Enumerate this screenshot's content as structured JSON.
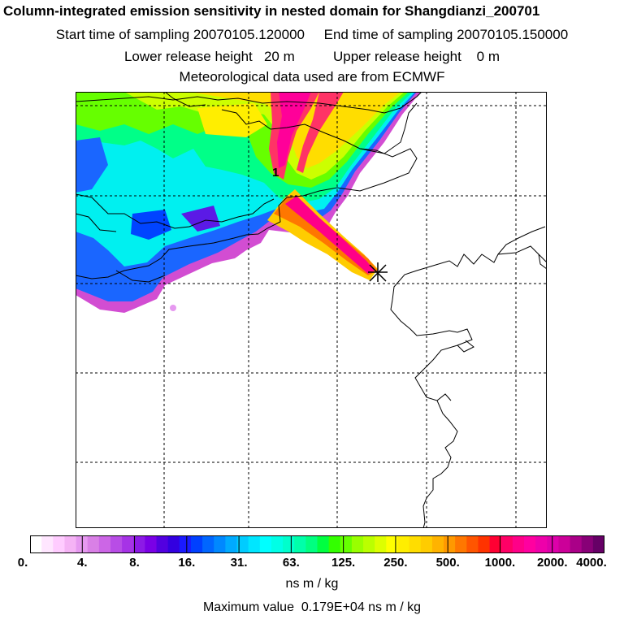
{
  "header": {
    "title": "Column-integrated emission sensitivity in nested domain for Shangdianzi_200701",
    "sampling_line": "Start time of sampling 20070105.120000     End time of sampling 20070105.150000",
    "release_line": "Lower release height   20 m          Upper release height    0 m",
    "met_line": "Meteorological data used are from ECMWF"
  },
  "map": {
    "label_1": "1",
    "receptor_marker": "star-cross-marker"
  },
  "colorbar": {
    "tick_labels": [
      "0.",
      "4.",
      "8.",
      "16.",
      "31.",
      "63.",
      "125.",
      "250.",
      "500.",
      "1000.",
      "2000.",
      "4000."
    ],
    "colors": [
      "#ffffff",
      "#ffe6ff",
      "#ffccff",
      "#f5b3f5",
      "#e699f0",
      "#d980e6",
      "#cc66e6",
      "#b84de6",
      "#a633e6",
      "#8c1ae6",
      "#7a00e6",
      "#5200e0",
      "#3300e0",
      "#1a1aff",
      "#0040ff",
      "#0066ff",
      "#0088ff",
      "#00aaff",
      "#00ccff",
      "#00e6ff",
      "#00ffff",
      "#00ffe6",
      "#00ffcc",
      "#00ffaa",
      "#00ff80",
      "#00ff40",
      "#33ff00",
      "#66ff00",
      "#99ff00",
      "#bbff00",
      "#ddff00",
      "#ffff00",
      "#ffee00",
      "#ffdd00",
      "#ffcc00",
      "#ffb300",
      "#ff9900",
      "#ff7700",
      "#ff5500",
      "#ff3300",
      "#ff0033",
      "#ff0066",
      "#ff0088",
      "#ff00a0",
      "#ee00aa",
      "#dd00aa",
      "#cc0099",
      "#aa0088",
      "#880077",
      "#660066"
    ],
    "unit": "ns m / kg"
  },
  "max_value_text": "Maximum value  0.179E+04 ns m / kg"
}
